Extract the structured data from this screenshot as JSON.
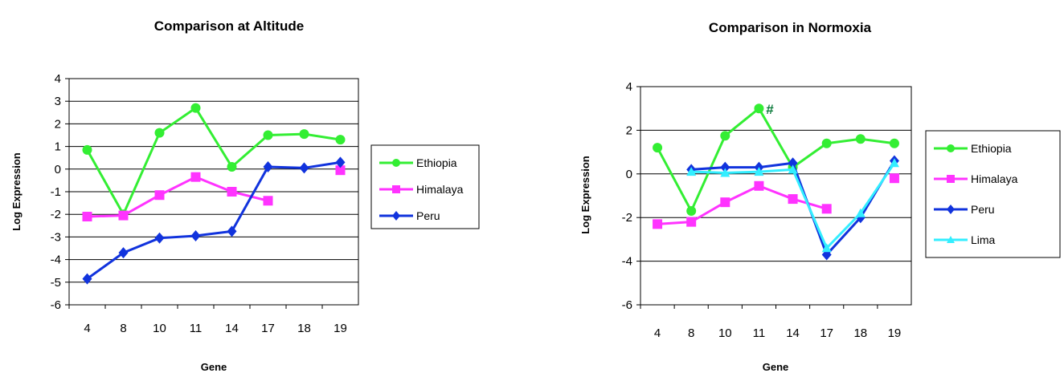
{
  "chart_data": [
    {
      "type": "line",
      "title": "Comparison at Altitude",
      "xlabel": "Gene",
      "ylabel": "Log Expression",
      "categories": [
        "4",
        "8",
        "10",
        "11",
        "14",
        "17",
        "18",
        "19"
      ],
      "ylim": [
        -6,
        4
      ],
      "yticks": [
        4,
        3,
        2,
        1,
        0,
        -1,
        -2,
        -3,
        -4,
        -5,
        -6
      ],
      "grid": true,
      "legend": "right",
      "series": [
        {
          "name": "Ethiopia",
          "color": "#33ee33",
          "marker": "circle",
          "values": [
            0.85,
            -2.0,
            1.6,
            2.7,
            0.1,
            1.5,
            1.55,
            1.3
          ]
        },
        {
          "name": "Himalaya",
          "color": "#ff33ff",
          "marker": "square",
          "values": [
            -2.1,
            -2.05,
            -1.15,
            -0.35,
            -1.0,
            -1.4,
            null,
            -0.05
          ]
        },
        {
          "name": "Peru",
          "color": "#1133dd",
          "marker": "diamond",
          "values": [
            -4.85,
            -3.7,
            -3.05,
            -2.95,
            -2.75,
            0.1,
            0.05,
            0.3
          ]
        }
      ]
    },
    {
      "type": "line",
      "title": "Comparison in Normoxia",
      "xlabel": "Gene",
      "ylabel": "Log Expression",
      "categories": [
        "4",
        "8",
        "10",
        "11",
        "14",
        "17",
        "18",
        "19"
      ],
      "ylim": [
        -6,
        4
      ],
      "yticks": [
        4,
        2,
        0,
        -2,
        -4,
        -6
      ],
      "grid": true,
      "legend": "right",
      "annotation": "#",
      "series": [
        {
          "name": "Ethiopia",
          "color": "#33ee33",
          "marker": "circle",
          "values": [
            1.2,
            -1.7,
            1.75,
            3.0,
            0.3,
            1.4,
            1.6,
            1.4
          ]
        },
        {
          "name": "Himalaya",
          "color": "#ff33ff",
          "marker": "square",
          "values": [
            -2.3,
            -2.2,
            -1.3,
            -0.55,
            -1.15,
            -1.6,
            null,
            -0.2
          ]
        },
        {
          "name": "Peru",
          "color": "#1133dd",
          "marker": "diamond",
          "values": [
            null,
            0.2,
            0.3,
            0.3,
            0.5,
            -3.7,
            -2.0,
            0.6
          ]
        },
        {
          "name": "Lima",
          "color": "#33eeff",
          "marker": "triangle",
          "values": [
            null,
            0.1,
            0.05,
            0.1,
            0.2,
            -3.4,
            -1.8,
            0.5
          ]
        }
      ]
    }
  ]
}
